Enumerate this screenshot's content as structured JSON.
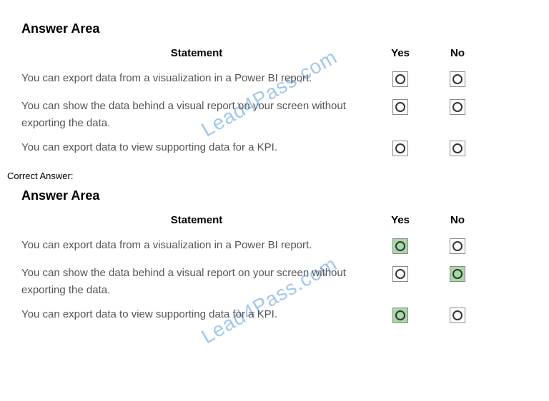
{
  "question": {
    "title": "Answer Area",
    "headers": {
      "statement": "Statement",
      "yes": "Yes",
      "no": "No"
    },
    "rows": [
      {
        "text": "You can export data from a visualization in a Power BI report.",
        "yes_selected": false,
        "no_selected": false
      },
      {
        "text": "You can show the data behind a visual report on your screen without exporting the data.",
        "yes_selected": false,
        "no_selected": false
      },
      {
        "text": "You can export data to view supporting data for a KPI.",
        "yes_selected": false,
        "no_selected": false
      }
    ]
  },
  "correct_label": "Correct Answer:",
  "answer": {
    "title": "Answer Area",
    "headers": {
      "statement": "Statement",
      "yes": "Yes",
      "no": "No"
    },
    "rows": [
      {
        "text": "You can export data from a visualization in a Power BI report.",
        "yes_selected": true,
        "no_selected": false
      },
      {
        "text": "You can show the data behind a visual report on your screen without exporting the data.",
        "yes_selected": false,
        "no_selected": true
      },
      {
        "text": "You can export data to view supporting data for a KPI.",
        "yes_selected": true,
        "no_selected": false
      }
    ]
  },
  "watermark_text": "Lead4Pass.com",
  "colors": {
    "selected_bg": "#a8d8a8",
    "text_color": "#555555",
    "header_color": "#000000",
    "watermark_color": "#4a90d9"
  }
}
